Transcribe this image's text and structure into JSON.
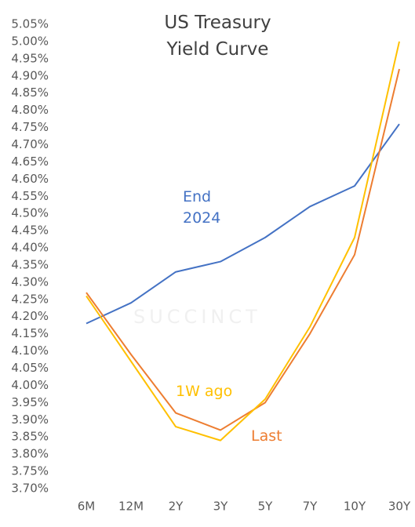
{
  "chart_data": {
    "type": "line",
    "title": "US Treasury Yield Curve",
    "watermark": "SUCCINCT",
    "categories": [
      "6M",
      "12M",
      "2Y",
      "3Y",
      "5Y",
      "7Y",
      "10Y",
      "30Y"
    ],
    "series": [
      {
        "name": "End 2024",
        "color": "#4472c4",
        "values": [
          4.18,
          4.24,
          4.33,
          4.36,
          4.43,
          4.52,
          4.58,
          4.76
        ]
      },
      {
        "name": "Last",
        "color": "#ed7d31",
        "values": [
          4.27,
          4.09,
          3.92,
          3.87,
          3.95,
          4.15,
          4.38,
          4.92
        ]
      },
      {
        "name": "1W ago",
        "color": "#ffc000",
        "values": [
          4.26,
          4.07,
          3.88,
          3.84,
          3.96,
          4.17,
          4.43,
          5.0
        ]
      }
    ],
    "ylim": [
      3.7,
      5.05
    ],
    "yticks": [
      {
        "value": 3.7,
        "label": "3.70%"
      },
      {
        "value": 3.75,
        "label": "3.75%"
      },
      {
        "value": 3.8,
        "label": "3.80%"
      },
      {
        "value": 3.85,
        "label": "3.85%"
      },
      {
        "value": 3.9,
        "label": "3.90%"
      },
      {
        "value": 3.95,
        "label": "3.95%"
      },
      {
        "value": 4.0,
        "label": "4.00%"
      },
      {
        "value": 4.05,
        "label": "4.05%"
      },
      {
        "value": 4.1,
        "label": "4.10%"
      },
      {
        "value": 4.15,
        "label": "4.15%"
      },
      {
        "value": 4.2,
        "label": "4.20%"
      },
      {
        "value": 4.25,
        "label": "4.25%"
      },
      {
        "value": 4.3,
        "label": "4.30%"
      },
      {
        "value": 4.35,
        "label": "4.35%"
      },
      {
        "value": 4.4,
        "label": "4.40%"
      },
      {
        "value": 4.45,
        "label": "4.45%"
      },
      {
        "value": 4.5,
        "label": "4.50%"
      },
      {
        "value": 4.55,
        "label": "4.55%"
      },
      {
        "value": 4.6,
        "label": "4.60%"
      },
      {
        "value": 4.65,
        "label": "4.65%"
      },
      {
        "value": 4.7,
        "label": "4.70%"
      },
      {
        "value": 4.75,
        "label": "4.75%"
      },
      {
        "value": 4.8,
        "label": "4.80%"
      },
      {
        "value": 4.85,
        "label": "4.85%"
      },
      {
        "value": 4.9,
        "label": "4.90%"
      },
      {
        "value": 4.95,
        "label": "4.95%"
      },
      {
        "value": 5.0,
        "label": "5.00%"
      },
      {
        "value": 5.05,
        "label": "5.05%"
      }
    ],
    "grid": false
  }
}
